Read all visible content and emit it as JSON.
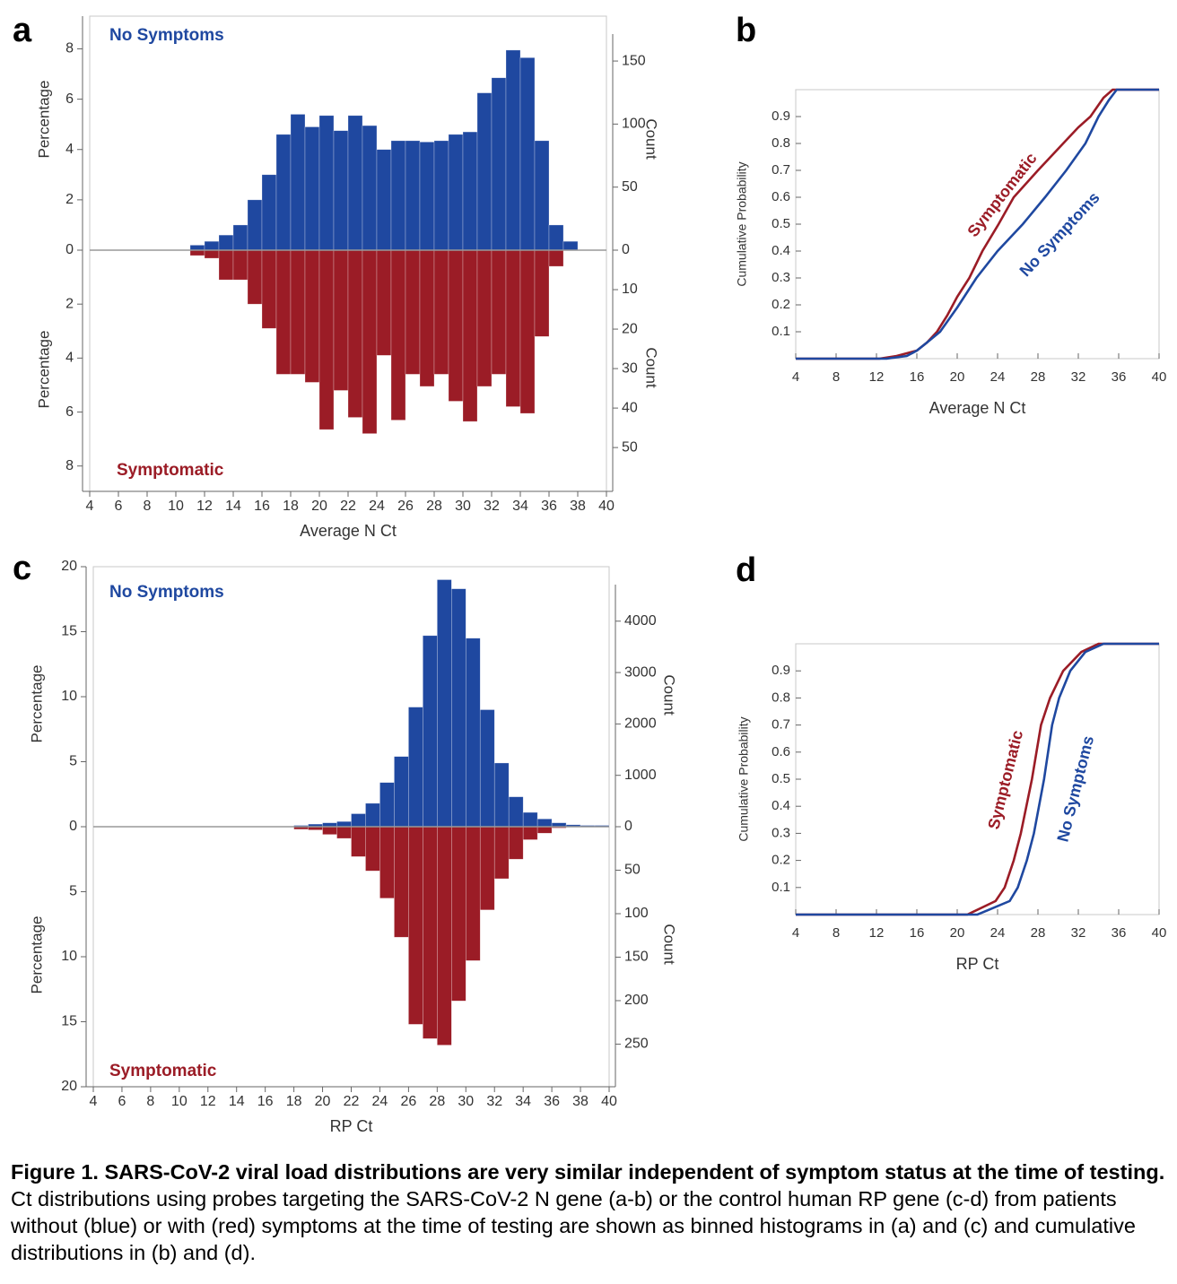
{
  "chart_data": [
    {
      "type": "mirrored_histogram",
      "panel": "a",
      "xlabel": "Average N Ct",
      "bins": [
        11,
        12,
        13,
        14,
        15,
        16,
        17,
        18,
        19,
        20,
        21,
        22,
        23,
        24,
        25,
        26,
        27,
        28,
        29,
        30,
        31,
        32,
        33,
        34,
        35,
        36,
        37,
        38
      ],
      "xlim": [
        4,
        40
      ],
      "xticks": [
        4,
        6,
        8,
        10,
        12,
        14,
        16,
        18,
        20,
        22,
        24,
        26,
        28,
        30,
        32,
        34,
        36,
        38,
        40
      ],
      "series": [
        {
          "name": "No Symptoms",
          "color": "#1f48a0",
          "values": [
            0.2,
            0.35,
            0.6,
            1.0,
            2.0,
            3.0,
            4.6,
            5.4,
            4.9,
            5.35,
            4.75,
            5.35,
            4.95,
            4.0,
            4.35,
            4.35,
            4.3,
            4.35,
            4.6,
            4.7,
            6.25,
            6.85,
            7.95,
            7.65,
            4.35,
            1.0,
            0.35
          ],
          "ylabel": "Percentage",
          "ylim": [
            0,
            9.3
          ],
          "yticks": [
            0,
            2,
            4,
            6,
            8
          ],
          "y2label": "Count",
          "y2lim": [
            0,
            185.6
          ],
          "y2ticks": [
            0,
            50,
            100,
            150
          ]
        },
        {
          "name": "Symptomatic",
          "color": "#9b1c26",
          "values": [
            0.2,
            0.3,
            1.1,
            1.1,
            2.0,
            2.9,
            4.6,
            4.6,
            4.9,
            6.65,
            5.2,
            6.2,
            6.8,
            3.9,
            6.3,
            4.6,
            5.05,
            4.6,
            5.6,
            6.35,
            5.05,
            4.6,
            5.8,
            6.05,
            3.2,
            0.6,
            0
          ],
          "ylabel": "Percentage",
          "ylim": [
            0,
            8.94
          ],
          "yticks": [
            2,
            4,
            6,
            8
          ],
          "y2label": "Count",
          "y2lim": [
            0,
            61.1
          ],
          "y2ticks": [
            10,
            20,
            30,
            40,
            50
          ]
        }
      ]
    },
    {
      "type": "line",
      "panel": "b",
      "xlabel": "Average N Ct",
      "ylabel": "Cumulative Probability",
      "xlim": [
        4,
        40
      ],
      "xticks": [
        4,
        8,
        12,
        16,
        20,
        24,
        28,
        32,
        36,
        40
      ],
      "ylim": [
        0,
        1
      ],
      "yticks": [
        0.1,
        0.2,
        0.3,
        0.4,
        0.5,
        0.6,
        0.7,
        0.8,
        0.9
      ],
      "series": [
        {
          "name": "Symptomatic",
          "color": "#9b1c26",
          "x": [
            4,
            12.3,
            14,
            16,
            17,
            18,
            19,
            20,
            21.2,
            22.5,
            24.1,
            25.6,
            28,
            30.5,
            32,
            33.2,
            34.5,
            35.4,
            40
          ],
          "values": [
            0,
            0,
            0.01,
            0.03,
            0.06,
            0.1,
            0.16,
            0.23,
            0.3,
            0.4,
            0.5,
            0.6,
            0.7,
            0.8,
            0.86,
            0.9,
            0.97,
            1.0,
            1.0
          ]
        },
        {
          "name": "No Symptoms",
          "color": "#1f48a0",
          "x": [
            4,
            13,
            15,
            16,
            17,
            18.3,
            20,
            21.9,
            24,
            26.5,
            28.7,
            30.8,
            32.7,
            34,
            35,
            35.8,
            40
          ],
          "values": [
            0,
            0,
            0.01,
            0.03,
            0.06,
            0.1,
            0.19,
            0.3,
            0.4,
            0.5,
            0.6,
            0.7,
            0.8,
            0.9,
            0.96,
            1.0,
            1.0
          ]
        }
      ]
    },
    {
      "type": "mirrored_histogram",
      "panel": "c",
      "xlabel": "RP Ct",
      "bins": [
        18,
        19,
        20,
        21,
        22,
        23,
        24,
        25,
        26,
        27,
        28,
        29,
        30,
        31,
        32,
        33,
        34,
        35,
        36,
        37,
        38,
        39,
        40
      ],
      "xlim": [
        4,
        40
      ],
      "xticks": [
        4,
        6,
        8,
        10,
        12,
        14,
        16,
        18,
        20,
        22,
        24,
        26,
        28,
        30,
        32,
        34,
        36,
        38,
        40
      ],
      "series": [
        {
          "name": "No Symptoms",
          "color": "#1f48a0",
          "values": [
            0.1,
            0.2,
            0.3,
            0.4,
            1.0,
            1.8,
            3.4,
            5.4,
            9.2,
            14.7,
            19.0,
            18.3,
            14.5,
            9.0,
            4.9,
            2.3,
            1.1,
            0.6,
            0.3,
            0.15,
            0.1,
            0.1
          ],
          "ylabel": "Percentage",
          "ylim": [
            0,
            20
          ],
          "yticks": [
            0,
            5,
            10,
            15,
            20
          ],
          "y2label": "Count",
          "y2lim": [
            0,
            5060
          ],
          "y2ticks": [
            0,
            1000,
            2000,
            3000,
            4000
          ]
        },
        {
          "name": "Symptomatic",
          "color": "#9b1c26",
          "values": [
            0.2,
            0.25,
            0.6,
            0.9,
            2.3,
            3.4,
            5.5,
            8.5,
            15.2,
            16.3,
            16.8,
            13.4,
            10.3,
            6.4,
            4.0,
            2.5,
            1.0,
            0.5,
            0.1,
            0,
            0,
            0
          ],
          "ylabel": "Percentage",
          "ylim": [
            0,
            20
          ],
          "yticks": [
            5,
            10,
            15,
            20
          ],
          "y2label": "Count",
          "y2lim": [
            0,
            299
          ],
          "y2ticks": [
            50,
            100,
            150,
            200,
            250
          ]
        }
      ]
    },
    {
      "type": "line",
      "panel": "d",
      "xlabel": "RP Ct",
      "ylabel": "Cumulative Probability",
      "xlim": [
        4,
        40
      ],
      "xticks": [
        4,
        8,
        12,
        16,
        20,
        24,
        28,
        32,
        36,
        40
      ],
      "ylim": [
        0,
        1
      ],
      "yticks": [
        0.1,
        0.2,
        0.3,
        0.4,
        0.5,
        0.6,
        0.7,
        0.8,
        0.9
      ],
      "series": [
        {
          "name": "Symptomatic",
          "color": "#9b1c26",
          "x": [
            4,
            21,
            23.8,
            24.7,
            25.6,
            26.3,
            27.4,
            28.3,
            29.2,
            30.5,
            32.3,
            34,
            40
          ],
          "values": [
            0,
            0,
            0.05,
            0.1,
            0.2,
            0.3,
            0.5,
            0.7,
            0.8,
            0.9,
            0.97,
            1.0,
            1.0
          ]
        },
        {
          "name": "No Symptoms",
          "color": "#1f48a0",
          "x": [
            4,
            22,
            25.2,
            26,
            26.9,
            27.6,
            28.6,
            29.4,
            30.1,
            31.2,
            32.7,
            34.5,
            40
          ],
          "values": [
            0,
            0,
            0.05,
            0.1,
            0.2,
            0.3,
            0.5,
            0.7,
            0.8,
            0.9,
            0.97,
            1.0,
            1.0
          ]
        }
      ]
    }
  ],
  "caption": {
    "title": "Figure 1. SARS-CoV-2 viral load distributions are very similar independent of symptom status at the time of testing.",
    "text": "Ct distributions using probes targeting the SARS-CoV-2 N gene (a-b) or the control human RP gene (c-d) from patients without (blue) or with (red) symptoms at the time of testing are shown as binned histograms in (a) and (c) and cumulative distributions in (b) and (d)."
  }
}
